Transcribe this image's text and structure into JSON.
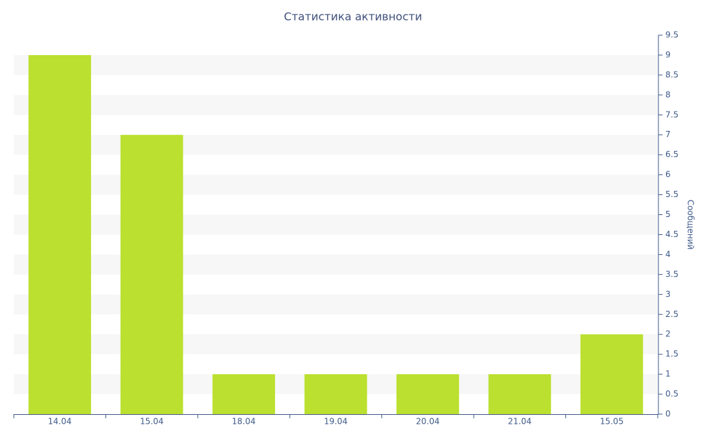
{
  "chart_data": {
    "type": "bar",
    "title": "Статистика активности",
    "y_axis_label": "Сообщений",
    "categories": [
      "14.04",
      "15.04",
      "18.04",
      "19.04",
      "20.04",
      "21.04",
      "15.05"
    ],
    "values": [
      9,
      7,
      1,
      1,
      1,
      1,
      2
    ],
    "color": "#bbe02f",
    "ylim": [
      0,
      9.5
    ],
    "yticks": [
      0,
      0.5,
      1,
      1.5,
      2,
      2.5,
      3,
      3.5,
      4,
      4.5,
      5,
      5.5,
      6,
      6.5,
      7,
      7.5,
      8,
      8.5,
      9,
      9.5
    ],
    "y_axis_side": "right",
    "grid": "bands"
  }
}
